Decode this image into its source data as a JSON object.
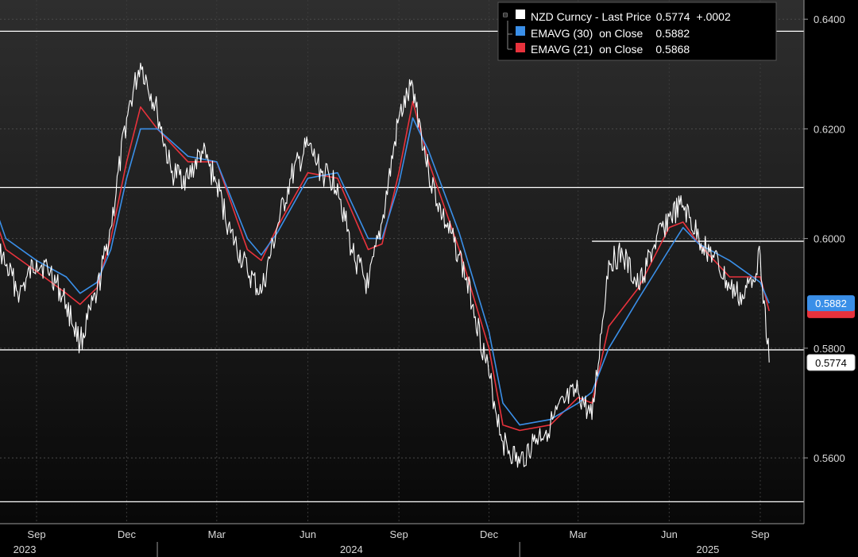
{
  "chart_data": {
    "type": "line",
    "title": "",
    "xlabel": "",
    "ylabel": "",
    "ylim": [
      0.548,
      0.6435
    ],
    "y_ticks": [
      "0.5600",
      "0.5800",
      "0.6000",
      "0.6200",
      "0.6400"
    ],
    "grid": "horizontal",
    "legend_position": "top-right",
    "legend": [
      {
        "label": "NZD Curncy - Last Price",
        "value": "0.5774",
        "change": "+.0002",
        "color": "#ffffff"
      },
      {
        "label": "EMAVG (30)  on Close",
        "value": "0.5882",
        "color": "#3a8fe8"
      },
      {
        "label": "EMAVG (21)  on Close",
        "value": "0.5868",
        "color": "#e8323c"
      }
    ],
    "last_value_tags": [
      {
        "text": "0.5882",
        "color": "#3a8fe8",
        "value": 0.5882
      },
      {
        "text": "0.5774",
        "color": "#ffffff",
        "value": 0.5774
      }
    ],
    "horizontal_levels": [
      {
        "value": 0.6378,
        "from": "2023-07-01"
      },
      {
        "value": 0.6093,
        "from": "2023-07-01"
      },
      {
        "value": 0.5995,
        "from": "2025-03-15"
      },
      {
        "value": 0.5797,
        "from": "2023-07-01"
      },
      {
        "value": 0.552,
        "from": "2023-07-01"
      }
    ],
    "x_ticks": [
      {
        "label": "Sep",
        "date": "2023-09-01"
      },
      {
        "label": "Dec",
        "date": "2023-12-01"
      },
      {
        "label": "Mar",
        "date": "2024-03-01"
      },
      {
        "label": "Jun",
        "date": "2024-06-01"
      },
      {
        "label": "Sep",
        "date": "2024-09-01"
      },
      {
        "label": "Dec",
        "date": "2024-12-01"
      },
      {
        "label": "Mar",
        "date": "2025-03-01"
      },
      {
        "label": "Jun",
        "date": "2025-06-01"
      },
      {
        "label": "Sep",
        "date": "2025-09-01"
      }
    ],
    "years": [
      {
        "label": "2023",
        "date": "2023-08-20"
      },
      {
        "label": "2024",
        "date": "2024-07-15"
      },
      {
        "label": "2025",
        "date": "2025-07-10"
      }
    ],
    "year_separators": [
      "2024-01-01",
      "2025-01-01"
    ],
    "series": [
      {
        "name": "NZD Curncy - Last Price",
        "color": "#ffffff",
        "x": [
          "2023-07-01",
          "2023-07-15",
          "2023-08-01",
          "2023-08-15",
          "2023-09-01",
          "2023-09-15",
          "2023-10-01",
          "2023-10-15",
          "2023-11-01",
          "2023-11-15",
          "2023-12-01",
          "2023-12-15",
          "2024-01-01",
          "2024-01-15",
          "2024-02-01",
          "2024-02-15",
          "2024-03-01",
          "2024-03-15",
          "2024-04-01",
          "2024-04-15",
          "2024-05-01",
          "2024-05-15",
          "2024-06-01",
          "2024-06-15",
          "2024-07-01",
          "2024-07-15",
          "2024-08-01",
          "2024-08-15",
          "2024-09-01",
          "2024-09-15",
          "2024-10-01",
          "2024-10-15",
          "2024-11-01",
          "2024-11-15",
          "2024-12-01",
          "2024-12-15",
          "2025-01-01",
          "2025-01-15",
          "2025-02-01",
          "2025-02-15",
          "2025-03-01",
          "2025-03-15",
          "2025-04-01",
          "2025-04-15",
          "2025-05-01",
          "2025-05-15",
          "2025-06-01",
          "2025-06-15",
          "2025-07-01",
          "2025-07-15",
          "2025-08-01",
          "2025-08-15",
          "2025-09-01",
          "2025-09-10"
        ],
        "values": [
          0.618,
          0.603,
          0.595,
          0.59,
          0.596,
          0.594,
          0.588,
          0.581,
          0.59,
          0.602,
          0.622,
          0.632,
          0.623,
          0.612,
          0.611,
          0.616,
          0.61,
          0.601,
          0.594,
          0.59,
          0.602,
          0.611,
          0.617,
          0.612,
          0.61,
          0.598,
          0.591,
          0.603,
          0.622,
          0.628,
          0.612,
          0.604,
          0.597,
          0.588,
          0.575,
          0.563,
          0.559,
          0.563,
          0.566,
          0.57,
          0.572,
          0.567,
          0.596,
          0.597,
          0.591,
          0.598,
          0.604,
          0.606,
          0.6,
          0.597,
          0.591,
          0.589,
          0.597,
          0.5774
        ]
      },
      {
        "name": "EMAVG (30)  on Close",
        "color": "#3a8fe8",
        "x": [
          "2023-07-01",
          "2023-08-01",
          "2023-09-01",
          "2023-10-01",
          "2023-10-15",
          "2023-11-01",
          "2023-11-15",
          "2023-12-01",
          "2023-12-15",
          "2024-01-01",
          "2024-02-01",
          "2024-03-01",
          "2024-04-01",
          "2024-04-15",
          "2024-05-01",
          "2024-06-01",
          "2024-07-01",
          "2024-08-01",
          "2024-08-15",
          "2024-09-01",
          "2024-09-15",
          "2024-10-01",
          "2024-11-01",
          "2024-12-01",
          "2024-12-15",
          "2025-01-01",
          "2025-02-01",
          "2025-03-01",
          "2025-03-15",
          "2025-04-01",
          "2025-05-01",
          "2025-06-01",
          "2025-06-15",
          "2025-07-01",
          "2025-08-01",
          "2025-09-01",
          "2025-09-10"
        ],
        "values": [
          0.616,
          0.6,
          0.596,
          0.593,
          0.59,
          0.592,
          0.598,
          0.611,
          0.62,
          0.62,
          0.615,
          0.614,
          0.6,
          0.597,
          0.601,
          0.611,
          0.612,
          0.6,
          0.6,
          0.61,
          0.622,
          0.616,
          0.601,
          0.583,
          0.57,
          0.566,
          0.567,
          0.57,
          0.572,
          0.58,
          0.589,
          0.598,
          0.602,
          0.599,
          0.596,
          0.592,
          0.5882
        ]
      },
      {
        "name": "EMAVG (21)  on Close",
        "color": "#e8323c",
        "x": [
          "2023-07-01",
          "2023-08-01",
          "2023-09-01",
          "2023-10-01",
          "2023-10-15",
          "2023-11-01",
          "2023-11-15",
          "2023-12-01",
          "2023-12-15",
          "2024-01-01",
          "2024-02-01",
          "2024-03-01",
          "2024-04-01",
          "2024-04-15",
          "2024-05-01",
          "2024-06-01",
          "2024-07-01",
          "2024-08-01",
          "2024-08-15",
          "2024-09-01",
          "2024-09-15",
          "2024-10-01",
          "2024-11-01",
          "2024-12-01",
          "2024-12-15",
          "2025-01-01",
          "2025-02-01",
          "2025-03-01",
          "2025-03-15",
          "2025-04-01",
          "2025-05-01",
          "2025-06-01",
          "2025-06-15",
          "2025-07-01",
          "2025-08-01",
          "2025-09-01",
          "2025-09-10"
        ],
        "values": [
          0.614,
          0.598,
          0.594,
          0.59,
          0.588,
          0.591,
          0.6,
          0.614,
          0.624,
          0.62,
          0.614,
          0.614,
          0.598,
          0.596,
          0.602,
          0.612,
          0.611,
          0.598,
          0.599,
          0.612,
          0.625,
          0.614,
          0.598,
          0.58,
          0.566,
          0.565,
          0.566,
          0.571,
          0.57,
          0.584,
          0.591,
          0.602,
          0.603,
          0.599,
          0.593,
          0.593,
          0.5868
        ]
      }
    ]
  }
}
